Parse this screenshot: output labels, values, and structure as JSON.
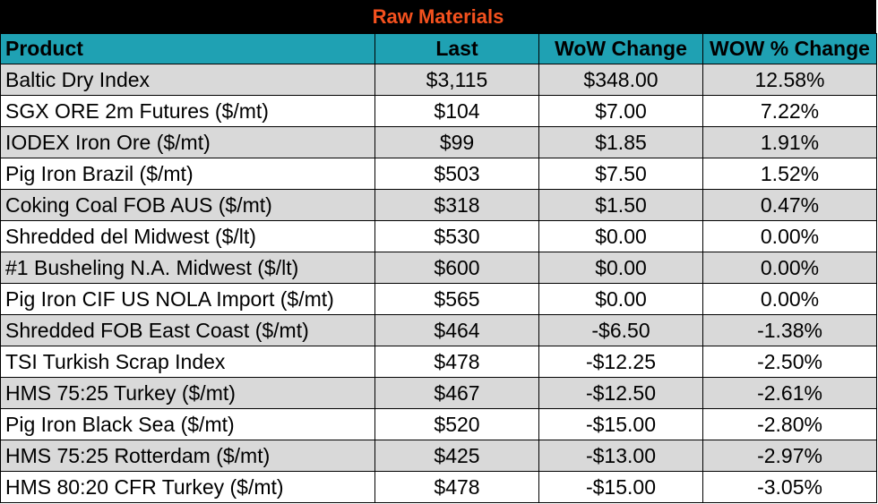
{
  "title": "Raw Materials",
  "colors": {
    "title_bg": "#000000",
    "title_text": "#f4511e",
    "header_bg": "#1fa1b3",
    "band": "#d9d9d9"
  },
  "headers": [
    "Product",
    "Last",
    "WoW Change",
    "WOW % Change"
  ],
  "rows": [
    [
      "Baltic Dry Index",
      "$3,115",
      "$348.00",
      "12.58%"
    ],
    [
      "SGX ORE 2m Futures ($/mt)",
      "$104",
      "$7.00",
      "7.22%"
    ],
    [
      "IODEX  Iron Ore ($/mt)",
      "$99",
      "$1.85",
      "1.91%"
    ],
    [
      "Pig Iron Brazil ($/mt)",
      "$503",
      "$7.50",
      "1.52%"
    ],
    [
      "Coking Coal FOB AUS ($/mt)",
      "$318",
      "$1.50",
      "0.47%"
    ],
    [
      "Shredded del  Midwest ($/lt)",
      "$530",
      "$0.00",
      "0.00%"
    ],
    [
      "#1 Busheling N.A. Midwest ($/lt)",
      "$600",
      "$0.00",
      "0.00%"
    ],
    [
      "Pig Iron CIF US NOLA Import ($/mt)",
      "$565",
      "$0.00",
      "0.00%"
    ],
    [
      "Shredded FOB East Coast ($/mt)",
      "$464",
      "-$6.50",
      "-1.38%"
    ],
    [
      "TSI Turkish Scrap Index",
      "$478",
      "-$12.25",
      "-2.50%"
    ],
    [
      "HMS 75:25 Turkey ($/mt)",
      "$467",
      "-$12.50",
      "-2.61%"
    ],
    [
      "Pig Iron Black Sea ($/mt)",
      "$520",
      "-$15.00",
      "-2.80%"
    ],
    [
      "HMS 75:25 Rotterdam ($/mt)",
      "$425",
      "-$13.00",
      "-2.97%"
    ],
    [
      "HMS 80:20 CFR Turkey ($/mt)",
      "$478",
      "-$15.00",
      "-3.05%"
    ]
  ]
}
